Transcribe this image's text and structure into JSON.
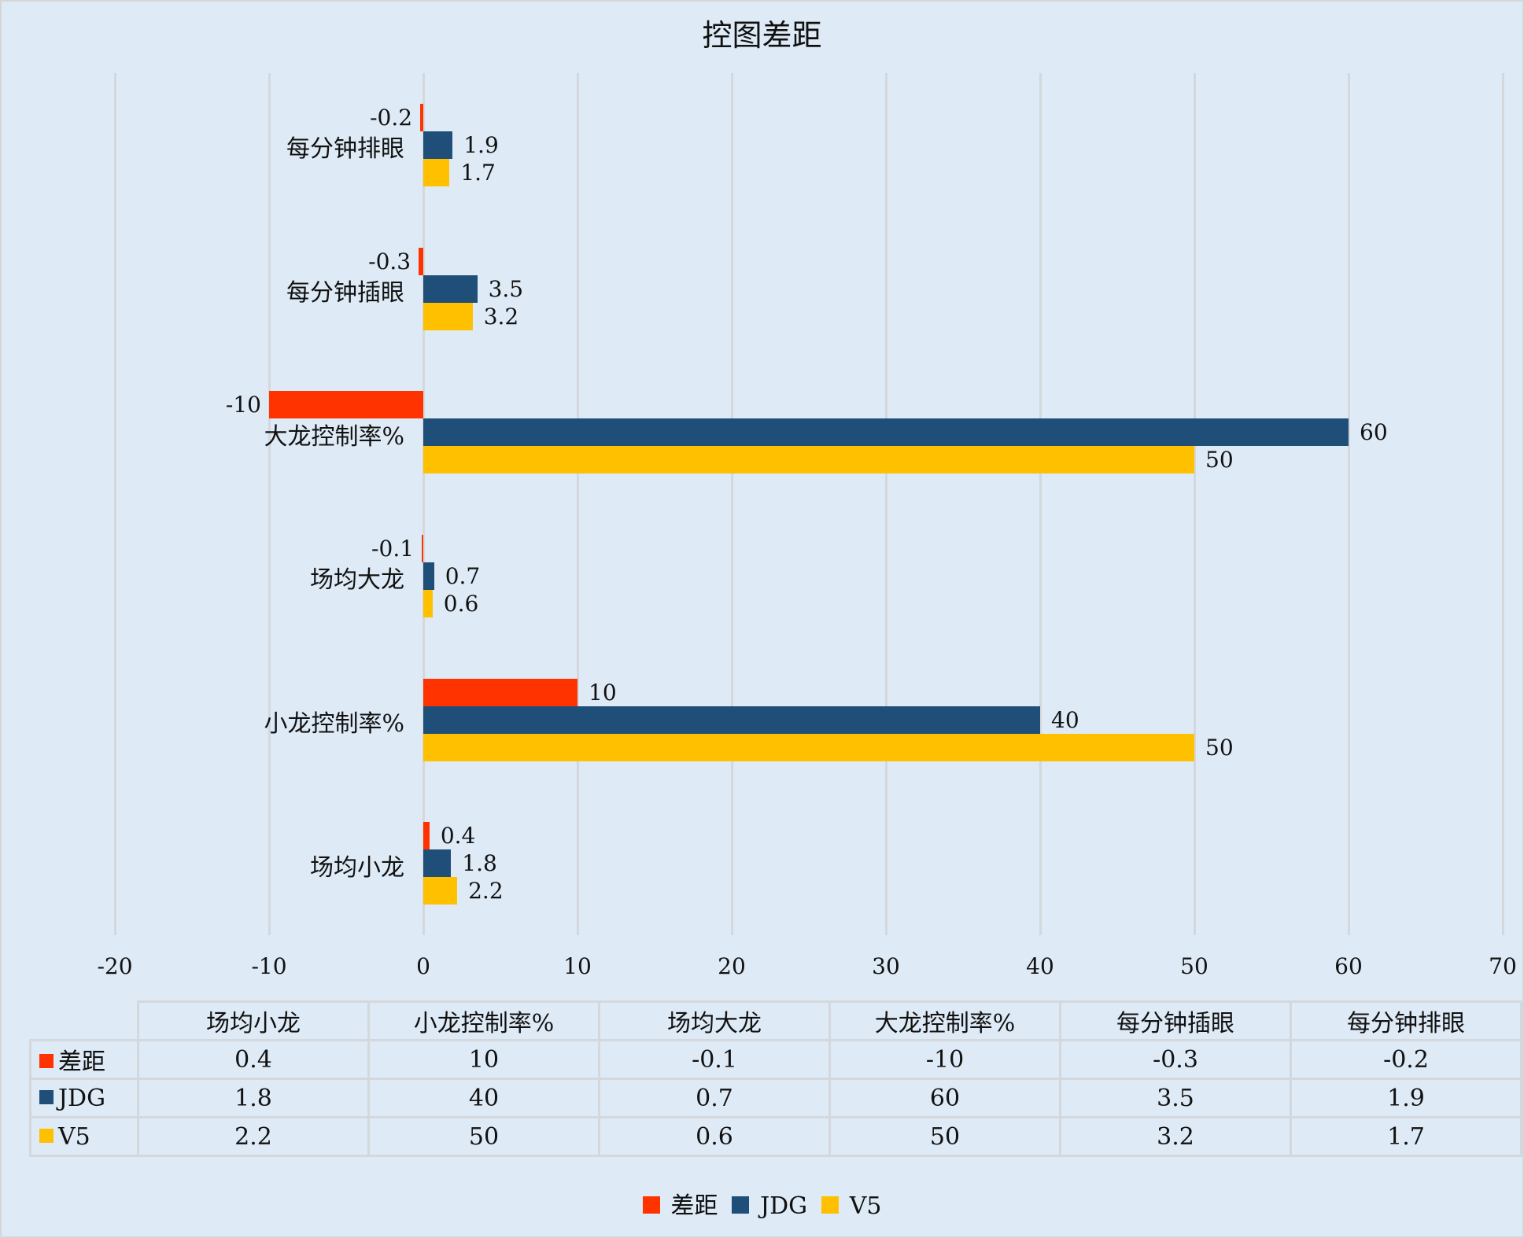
{
  "chart_data": {
    "type": "bar",
    "orientation": "horizontal",
    "title": "控图差距",
    "categories": [
      "场均小龙",
      "小龙控制率%",
      "场均大龙",
      "大龙控制率%",
      "每分钟插眼",
      "每分钟排眼"
    ],
    "series": [
      {
        "name": "差距",
        "color": "#ff3300",
        "values": [
          0.4,
          10,
          -0.1,
          -10,
          -0.3,
          -0.2
        ]
      },
      {
        "name": "JDG",
        "color": "#1f4e79",
        "values": [
          1.8,
          40,
          0.7,
          60,
          3.5,
          1.9
        ]
      },
      {
        "name": "V5",
        "color": "#ffc000",
        "values": [
          2.2,
          50,
          0.6,
          50,
          3.2,
          1.7
        ]
      }
    ],
    "xlim": [
      -20,
      70
    ],
    "xticks": [
      -20,
      -10,
      0,
      10,
      20,
      30,
      40,
      50,
      60,
      70
    ],
    "xlabel": "",
    "ylabel": "",
    "grid": true,
    "legend_position": "bottom",
    "data_table": true
  },
  "labels": {
    "title": "控图差距",
    "xticks": [
      "-20",
      "-10",
      "0",
      "10",
      "20",
      "30",
      "40",
      "50",
      "60",
      "70"
    ],
    "categories_top_to_bottom": [
      "每分钟排眼",
      "每分钟插眼",
      "大龙控制率%",
      "场均大龙",
      "小龙控制率%",
      "场均小龙"
    ]
  },
  "table": {
    "headers": [
      "场均小龙",
      "小龙控制率%",
      "场均大龙",
      "大龙控制率%",
      "每分钟插眼",
      "每分钟排眼"
    ],
    "rows": [
      {
        "name": "差距",
        "color": "#ff3300",
        "cells": [
          "0.4",
          "10",
          "-0.1",
          "-10",
          "-0.3",
          "-0.2"
        ]
      },
      {
        "name": "JDG",
        "color": "#1f4e79",
        "cells": [
          "1.8",
          "40",
          "0.7",
          "60",
          "3.5",
          "1.9"
        ]
      },
      {
        "name": "V5",
        "color": "#ffc000",
        "cells": [
          "2.2",
          "50",
          "0.6",
          "50",
          "3.2",
          "1.7"
        ]
      }
    ]
  },
  "legend": [
    {
      "name": "差距",
      "color": "#ff3300"
    },
    {
      "name": "JDG",
      "color": "#1f4e79"
    },
    {
      "name": "V5",
      "color": "#ffc000"
    }
  ]
}
